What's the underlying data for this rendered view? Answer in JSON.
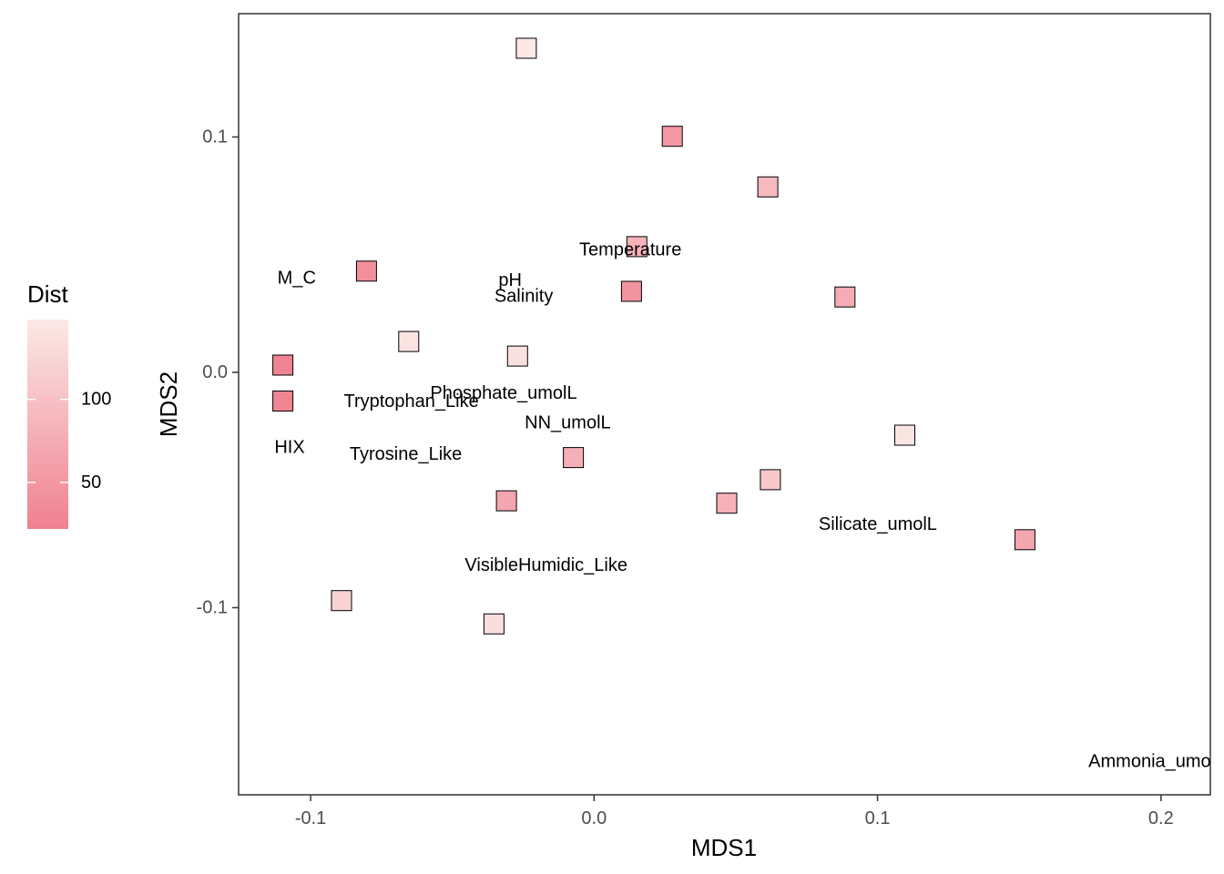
{
  "chart_data": {
    "type": "scatter",
    "title": "",
    "xlabel": "MDS1",
    "ylabel": "MDS2",
    "xlim": [
      -0.1254,
      0.2174
    ],
    "ylim": [
      -0.1795,
      0.1524
    ],
    "grid": false,
    "x_ticks": [
      {
        "value": -0.1,
        "label": "-0.1"
      },
      {
        "value": 0.0,
        "label": "0.0"
      },
      {
        "value": 0.1,
        "label": "0.1"
      },
      {
        "value": 0.2,
        "label": "0.2"
      }
    ],
    "y_ticks": [
      {
        "value": 0.1,
        "label": "0.1"
      },
      {
        "value": 0.0,
        "label": "0.0"
      },
      {
        "value": -0.1,
        "label": "-0.1"
      }
    ],
    "legend": {
      "title": "Dist",
      "placement": "left",
      "min": 22,
      "max": 148,
      "color_low": "#f08090",
      "color_high": "#fbe9e6",
      "ticks": [
        {
          "value": 100,
          "label": "100"
        },
        {
          "value": 50,
          "label": "50"
        }
      ]
    },
    "points": [
      {
        "x": -0.0239,
        "y": 0.1377,
        "dist": 145
      },
      {
        "x": 0.0276,
        "y": 0.1003,
        "dist": 52
      },
      {
        "x": 0.0613,
        "y": 0.0788,
        "dist": 90
      },
      {
        "x": 0.0151,
        "y": 0.0534,
        "dist": 83
      },
      {
        "x": -0.0803,
        "y": 0.043,
        "dist": 40
      },
      {
        "x": 0.0132,
        "y": 0.0344,
        "dist": 45
      },
      {
        "x": 0.0885,
        "y": 0.032,
        "dist": 75
      },
      {
        "x": -0.0654,
        "y": 0.0131,
        "dist": 142
      },
      {
        "x": -0.027,
        "y": 0.0069,
        "dist": 138
      },
      {
        "x": -0.1098,
        "y": 0.0031,
        "dist": 26
      },
      {
        "x": -0.1098,
        "y": -0.0122,
        "dist": 28
      },
      {
        "x": 0.1096,
        "y": -0.0267,
        "dist": 143
      },
      {
        "x": -0.0073,
        "y": -0.0362,
        "dist": 78
      },
      {
        "x": 0.0622,
        "y": -0.0456,
        "dist": 108
      },
      {
        "x": -0.0309,
        "y": -0.0546,
        "dist": 68
      },
      {
        "x": 0.0468,
        "y": -0.0556,
        "dist": 82
      },
      {
        "x": 0.152,
        "y": -0.0711,
        "dist": 68
      },
      {
        "x": -0.0891,
        "y": -0.097,
        "dist": 120
      },
      {
        "x": -0.0353,
        "y": -0.1069,
        "dist": 135
      }
    ],
    "labels": [
      {
        "text": "Temperature",
        "x": 0.0128,
        "y": 0.052
      },
      {
        "text": "M_C",
        "x": -0.1049,
        "y": 0.04
      },
      {
        "text": "pH",
        "x": -0.0296,
        "y": 0.039
      },
      {
        "text": "Salinity",
        "x": -0.0248,
        "y": 0.0323
      },
      {
        "text": "Phosphate_umolL",
        "x": -0.0319,
        "y": -0.0089
      },
      {
        "text": "Tryptophan_Like",
        "x": -0.0645,
        "y": -0.0123
      },
      {
        "text": "NN_umolL",
        "x": -0.0093,
        "y": -0.0214
      },
      {
        "text": "HIX",
        "x": -0.1074,
        "y": -0.032
      },
      {
        "text": "Tyrosine_Like",
        "x": -0.0664,
        "y": -0.0349
      },
      {
        "text": "Silicate_umolL",
        "x": 0.1001,
        "y": -0.0647
      },
      {
        "text": "VisibleHumidic_Like",
        "x": -0.0169,
        "y": -0.0821
      },
      {
        "text": "Ammonia_umolL",
        "x": 0.1985,
        "y": -0.1653
      }
    ]
  }
}
